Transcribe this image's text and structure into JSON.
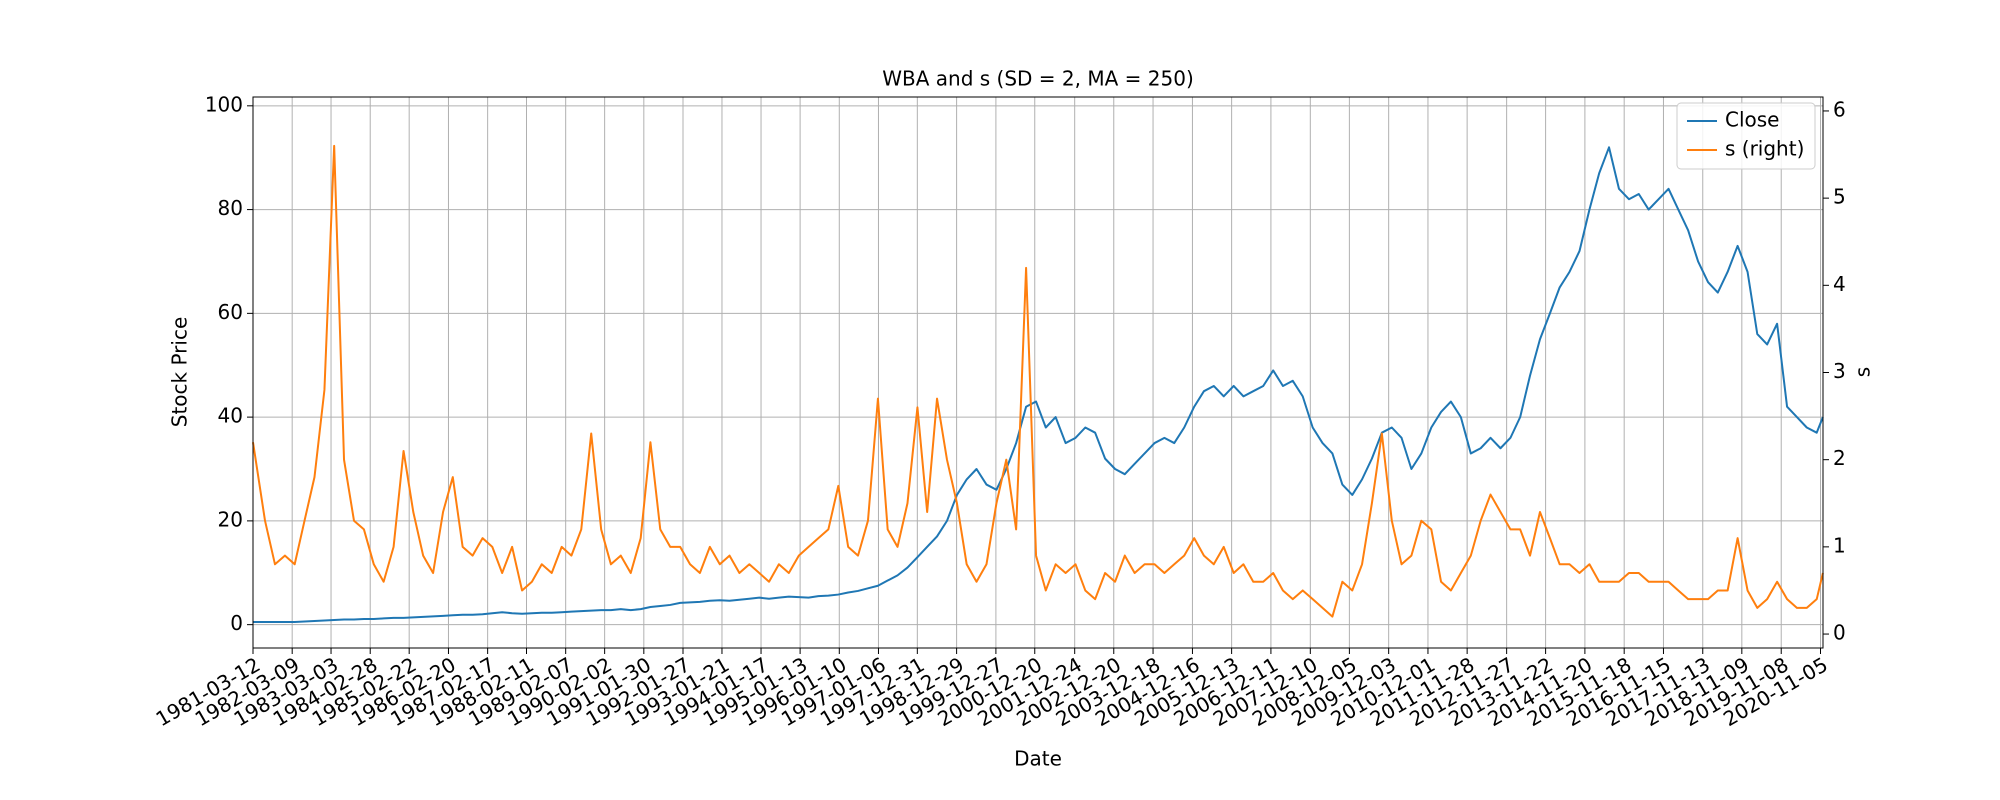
{
  "chart_data": {
    "type": "line",
    "title": "WBA and s (SD = 2, MA = 250)",
    "xlabel": "Date",
    "ylabel": "Stock Price",
    "y2label": "s",
    "x": [
      "1981-03-12",
      "1981-07-01",
      "1981-10-01",
      "1982-01-01",
      "1982-04-01",
      "1982-07-01",
      "1982-10-01",
      "1983-01-01",
      "1983-04-01",
      "1983-07-01",
      "1983-10-01",
      "1984-01-01",
      "1984-04-01",
      "1984-07-01",
      "1984-10-01",
      "1985-01-01",
      "1985-04-01",
      "1985-07-01",
      "1985-10-01",
      "1986-01-01",
      "1986-04-01",
      "1986-07-01",
      "1986-10-01",
      "1987-01-01",
      "1987-04-01",
      "1987-07-01",
      "1987-10-01",
      "1988-01-01",
      "1988-04-01",
      "1988-07-01",
      "1988-10-01",
      "1989-01-01",
      "1989-04-01",
      "1989-07-01",
      "1989-10-01",
      "1990-01-01",
      "1990-04-01",
      "1990-07-01",
      "1990-10-01",
      "1991-01-01",
      "1991-04-01",
      "1991-07-01",
      "1991-10-01",
      "1992-01-01",
      "1992-04-01",
      "1992-07-01",
      "1992-10-01",
      "1993-01-01",
      "1993-04-01",
      "1993-07-01",
      "1993-10-01",
      "1994-01-01",
      "1994-04-01",
      "1994-07-01",
      "1994-10-01",
      "1995-01-01",
      "1995-04-01",
      "1995-07-01",
      "1995-10-01",
      "1996-01-01",
      "1996-04-01",
      "1996-07-01",
      "1996-10-01",
      "1997-01-01",
      "1997-04-01",
      "1997-07-01",
      "1997-10-01",
      "1998-01-01",
      "1998-04-01",
      "1998-07-01",
      "1998-10-01",
      "1999-01-01",
      "1999-04-01",
      "1999-07-01",
      "1999-10-01",
      "2000-01-01",
      "2000-04-01",
      "2000-07-01",
      "2000-10-01",
      "2001-01-01",
      "2001-04-01",
      "2001-07-01",
      "2001-10-01",
      "2002-01-01",
      "2002-04-01",
      "2002-07-01",
      "2002-10-01",
      "2003-01-01",
      "2003-04-01",
      "2003-07-01",
      "2003-10-01",
      "2004-01-01",
      "2004-04-01",
      "2004-07-01",
      "2004-10-01",
      "2005-01-01",
      "2005-04-01",
      "2005-07-01",
      "2005-10-01",
      "2006-01-01",
      "2006-04-01",
      "2006-07-01",
      "2006-10-01",
      "2007-01-01",
      "2007-04-01",
      "2007-07-01",
      "2007-10-01",
      "2008-01-01",
      "2008-04-01",
      "2008-07-01",
      "2008-10-01",
      "2009-01-01",
      "2009-04-01",
      "2009-07-01",
      "2009-10-01",
      "2010-01-01",
      "2010-04-01",
      "2010-07-01",
      "2010-10-01",
      "2011-01-01",
      "2011-04-01",
      "2011-07-01",
      "2011-10-01",
      "2012-01-01",
      "2012-04-01",
      "2012-07-01",
      "2012-10-01",
      "2013-01-01",
      "2013-04-01",
      "2013-07-01",
      "2013-10-01",
      "2014-01-01",
      "2014-04-01",
      "2014-07-01",
      "2014-10-01",
      "2015-01-01",
      "2015-04-01",
      "2015-07-01",
      "2015-10-01",
      "2016-01-01",
      "2016-04-01",
      "2016-07-01",
      "2016-10-01",
      "2017-01-01",
      "2017-04-01",
      "2017-07-01",
      "2017-10-01",
      "2018-01-01",
      "2018-04-01",
      "2018-07-01",
      "2018-10-01",
      "2019-01-01",
      "2019-04-01",
      "2019-07-01",
      "2019-10-01",
      "2020-01-01",
      "2020-04-01",
      "2020-07-01",
      "2020-10-01",
      "2020-11-27"
    ],
    "series": [
      {
        "name": "Close",
        "color": "#1f77b4",
        "axis": "y",
        "values": [
          0.5,
          0.5,
          0.5,
          0.5,
          0.5,
          0.6,
          0.7,
          0.8,
          0.9,
          1.0,
          1.0,
          1.1,
          1.1,
          1.2,
          1.3,
          1.3,
          1.4,
          1.5,
          1.6,
          1.7,
          1.8,
          1.9,
          1.9,
          2.0,
          2.2,
          2.4,
          2.2,
          2.1,
          2.2,
          2.3,
          2.3,
          2.4,
          2.5,
          2.6,
          2.7,
          2.8,
          2.8,
          3.0,
          2.8,
          3.0,
          3.4,
          3.6,
          3.8,
          4.2,
          4.3,
          4.4,
          4.6,
          4.7,
          4.6,
          4.8,
          5.0,
          5.2,
          5.0,
          5.2,
          5.4,
          5.3,
          5.2,
          5.5,
          5.6,
          5.8,
          6.2,
          6.5,
          7.0,
          7.5,
          8.5,
          9.5,
          11,
          13,
          15,
          17,
          20,
          25,
          28,
          30,
          27,
          26,
          30,
          35,
          42,
          43,
          38,
          40,
          35,
          36,
          38,
          37,
          32,
          30,
          29,
          31,
          33,
          35,
          36,
          35,
          38,
          42,
          45,
          46,
          44,
          46,
          44,
          45,
          46,
          49,
          46,
          47,
          44,
          38,
          35,
          33,
          27,
          25,
          28,
          32,
          37,
          38,
          36,
          30,
          33,
          38,
          41,
          43,
          40,
          33,
          34,
          36,
          34,
          36,
          40,
          48,
          55,
          60,
          65,
          68,
          72,
          80,
          87,
          92,
          84,
          82,
          83,
          80,
          82,
          84,
          80,
          76,
          70,
          66,
          64,
          68,
          73,
          68,
          56,
          54,
          58,
          42,
          40,
          38,
          37,
          40
        ]
      },
      {
        "name": "s (right)",
        "color": "#ff7f0e",
        "axis": "y2",
        "values": [
          2.2,
          1.3,
          0.8,
          0.9,
          0.8,
          1.3,
          1.8,
          2.8,
          5.6,
          2.0,
          1.3,
          1.2,
          0.8,
          0.6,
          1.0,
          2.1,
          1.4,
          0.9,
          0.7,
          1.4,
          1.8,
          1.0,
          0.9,
          1.1,
          1.0,
          0.7,
          1.0,
          0.5,
          0.6,
          0.8,
          0.7,
          1.0,
          0.9,
          1.2,
          2.3,
          1.2,
          0.8,
          0.9,
          0.7,
          1.1,
          2.2,
          1.2,
          1.0,
          1.0,
          0.8,
          0.7,
          1.0,
          0.8,
          0.9,
          0.7,
          0.8,
          0.7,
          0.6,
          0.8,
          0.7,
          0.9,
          1.0,
          1.1,
          1.2,
          1.7,
          1.0,
          0.9,
          1.3,
          2.7,
          1.2,
          1.0,
          1.5,
          2.6,
          1.4,
          2.7,
          2.0,
          1.5,
          0.8,
          0.6,
          0.8,
          1.5,
          2.0,
          1.2,
          4.2,
          0.9,
          0.5,
          0.8,
          0.7,
          0.8,
          0.5,
          0.4,
          0.7,
          0.6,
          0.9,
          0.7,
          0.8,
          0.8,
          0.7,
          0.8,
          0.9,
          1.1,
          0.9,
          0.8,
          1.0,
          0.7,
          0.8,
          0.6,
          0.6,
          0.7,
          0.5,
          0.4,
          0.5,
          0.4,
          0.3,
          0.2,
          0.6,
          0.5,
          0.8,
          1.5,
          2.3,
          1.3,
          0.8,
          0.9,
          1.3,
          1.2,
          0.6,
          0.5,
          0.7,
          0.9,
          1.3,
          1.6,
          1.4,
          1.2,
          1.2,
          0.9,
          1.4,
          1.1,
          0.8,
          0.8,
          0.7,
          0.8,
          0.6,
          0.6,
          0.6,
          0.7,
          0.7,
          0.6,
          0.6,
          0.6,
          0.5,
          0.4,
          0.4,
          0.4,
          0.5,
          0.5,
          1.1,
          0.5,
          0.3,
          0.4,
          0.6,
          0.4,
          0.3,
          0.3,
          0.4,
          0.7
        ]
      }
    ],
    "xlim": [
      "1981-03-12",
      "2020-11-28"
    ],
    "xticks": [
      "1981-03-12",
      "1982-03-09",
      "1983-03-03",
      "1984-02-28",
      "1985-02-22",
      "1986-02-20",
      "1987-02-17",
      "1988-02-11",
      "1989-02-07",
      "1990-02-02",
      "1991-01-30",
      "1992-01-27",
      "1993-01-21",
      "1994-01-17",
      "1995-01-13",
      "1996-01-10",
      "1997-01-06",
      "1997-12-31",
      "1998-12-29",
      "1999-12-27",
      "2000-12-20",
      "2001-12-24",
      "2002-12-20",
      "2003-12-18",
      "2004-12-16",
      "2005-12-13",
      "2006-12-11",
      "2007-12-10",
      "2008-12-05",
      "2009-12-03",
      "2010-12-01",
      "2011-11-28",
      "2012-11-27",
      "2013-11-22",
      "2014-11-20",
      "2015-11-18",
      "2016-11-15",
      "2017-11-13",
      "2018-11-09",
      "2019-11-08",
      "2020-11-05"
    ],
    "ylim": [
      -4.5,
      101.7
    ],
    "yticks": [
      0,
      20,
      40,
      60,
      80,
      100
    ],
    "y2lim": [
      -0.16,
      6.16
    ],
    "y2ticks": [
      0,
      1,
      2,
      3,
      4,
      5,
      6
    ],
    "grid": true,
    "legend": "upper right"
  }
}
